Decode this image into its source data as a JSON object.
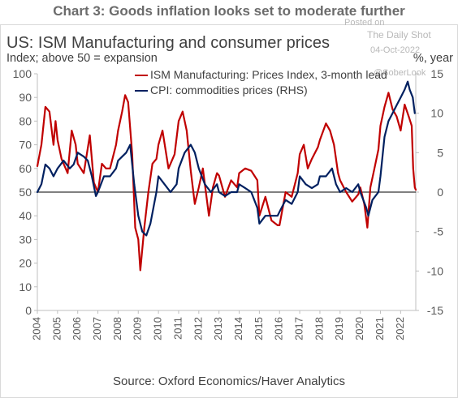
{
  "header": {
    "banner": "Chart 3: Goods inflation looks set to moderate further"
  },
  "watermark": {
    "posted_on": "Posted on",
    "site": "The Daily Shot",
    "date": "04-Oct-2022",
    "handle": "@SoberLook"
  },
  "chart_data": {
    "type": "line",
    "title": "US: ISM Manufacturing and consumer prices",
    "left_axis_label": "Index; above 50 = expansion",
    "right_axis_label": "%, year",
    "source": "Source: Oxford Economics/Haver Analytics",
    "left_ticks": [
      0,
      10,
      20,
      30,
      40,
      50,
      60,
      70,
      80,
      90,
      100
    ],
    "left_tick_labels": [
      "0",
      "10",
      "20",
      "30",
      "40",
      "50",
      "60",
      "70",
      "80",
      "90",
      "100"
    ],
    "right_ticks": [
      -15,
      -10,
      -5,
      0,
      5,
      10,
      15
    ],
    "right_tick_labels": [
      "-15",
      "-10",
      "-5",
      "0",
      "5",
      "10",
      "15"
    ],
    "x_tick_labels": [
      "2004",
      "2005",
      "2006",
      "2007",
      "2008",
      "2009",
      "2010",
      "2011",
      "2012",
      "2013",
      "2014",
      "2015",
      "2016",
      "2017",
      "2018",
      "2019",
      "2020",
      "2021",
      "2022"
    ],
    "x_range": [
      2004.0,
      2022.75
    ],
    "ylim_left": [
      0,
      100
    ],
    "ylim_right": [
      -15,
      15
    ],
    "reference_line": 50,
    "colors": {
      "ism": "#c00000",
      "cpi": "#002060"
    },
    "series": [
      {
        "name": "ISM Manufacturing: Prices Index, 3-month lead",
        "axis": "left",
        "points": [
          [
            2004.0,
            61
          ],
          [
            2004.2,
            70
          ],
          [
            2004.4,
            86
          ],
          [
            2004.6,
            84
          ],
          [
            2004.8,
            70
          ],
          [
            2004.9,
            80
          ],
          [
            2005.0,
            72
          ],
          [
            2005.2,
            64
          ],
          [
            2005.5,
            58
          ],
          [
            2005.7,
            76
          ],
          [
            2005.9,
            70
          ],
          [
            2006.0,
            62
          ],
          [
            2006.3,
            58
          ],
          [
            2006.6,
            74
          ],
          [
            2006.8,
            54
          ],
          [
            2007.0,
            50
          ],
          [
            2007.2,
            62
          ],
          [
            2007.4,
            60
          ],
          [
            2007.6,
            60
          ],
          [
            2007.9,
            70
          ],
          [
            2008.0,
            76
          ],
          [
            2008.2,
            84
          ],
          [
            2008.35,
            91
          ],
          [
            2008.5,
            88
          ],
          [
            2008.7,
            66
          ],
          [
            2008.85,
            35
          ],
          [
            2009.0,
            30
          ],
          [
            2009.1,
            17
          ],
          [
            2009.3,
            35
          ],
          [
            2009.5,
            50
          ],
          [
            2009.7,
            62
          ],
          [
            2009.9,
            64
          ],
          [
            2010.0,
            70
          ],
          [
            2010.2,
            76
          ],
          [
            2010.5,
            60
          ],
          [
            2010.8,
            66
          ],
          [
            2011.0,
            80
          ],
          [
            2011.2,
            84
          ],
          [
            2011.4,
            76
          ],
          [
            2011.6,
            59
          ],
          [
            2011.8,
            45
          ],
          [
            2012.0,
            52
          ],
          [
            2012.2,
            60
          ],
          [
            2012.5,
            40
          ],
          [
            2012.7,
            52
          ],
          [
            2012.9,
            58
          ],
          [
            2013.0,
            57
          ],
          [
            2013.3,
            48
          ],
          [
            2013.6,
            55
          ],
          [
            2013.9,
            52
          ],
          [
            2014.0,
            58
          ],
          [
            2014.3,
            60
          ],
          [
            2014.6,
            59
          ],
          [
            2014.9,
            55
          ],
          [
            2015.0,
            40
          ],
          [
            2015.3,
            48
          ],
          [
            2015.6,
            38
          ],
          [
            2015.9,
            36
          ],
          [
            2016.0,
            36
          ],
          [
            2016.3,
            50
          ],
          [
            2016.6,
            48
          ],
          [
            2016.9,
            58
          ],
          [
            2017.0,
            66
          ],
          [
            2017.2,
            70
          ],
          [
            2017.4,
            60
          ],
          [
            2017.6,
            64
          ],
          [
            2017.9,
            69
          ],
          [
            2018.0,
            72
          ],
          [
            2018.3,
            79
          ],
          [
            2018.5,
            76
          ],
          [
            2018.7,
            70
          ],
          [
            2018.9,
            58
          ],
          [
            2019.0,
            55
          ],
          [
            2019.3,
            50
          ],
          [
            2019.6,
            46
          ],
          [
            2019.9,
            49
          ],
          [
            2020.0,
            52
          ],
          [
            2020.2,
            45
          ],
          [
            2020.35,
            35
          ],
          [
            2020.5,
            52
          ],
          [
            2020.7,
            60
          ],
          [
            2020.9,
            68
          ],
          [
            2021.0,
            78
          ],
          [
            2021.2,
            86
          ],
          [
            2021.4,
            92
          ],
          [
            2021.6,
            85
          ],
          [
            2021.8,
            82
          ],
          [
            2022.0,
            76
          ],
          [
            2022.2,
            87
          ],
          [
            2022.4,
            82
          ],
          [
            2022.55,
            78
          ],
          [
            2022.62,
            60
          ],
          [
            2022.7,
            52
          ],
          [
            2022.75,
            51
          ]
        ]
      },
      {
        "name": "CPI: commodities prices (RHS)",
        "axis": "right",
        "points": [
          [
            2004.0,
            0
          ],
          [
            2004.2,
            1
          ],
          [
            2004.4,
            3.5
          ],
          [
            2004.6,
            3
          ],
          [
            2004.8,
            2
          ],
          [
            2005.0,
            3
          ],
          [
            2005.3,
            4
          ],
          [
            2005.6,
            3
          ],
          [
            2005.8,
            3.5
          ],
          [
            2006.0,
            5
          ],
          [
            2006.3,
            4.5
          ],
          [
            2006.5,
            4
          ],
          [
            2006.7,
            2
          ],
          [
            2006.9,
            -0.5
          ],
          [
            2007.0,
            0
          ],
          [
            2007.3,
            2
          ],
          [
            2007.6,
            2
          ],
          [
            2007.9,
            3
          ],
          [
            2008.0,
            4
          ],
          [
            2008.2,
            4.5
          ],
          [
            2008.4,
            5
          ],
          [
            2008.6,
            6
          ],
          [
            2008.8,
            1
          ],
          [
            2009.0,
            -3
          ],
          [
            2009.2,
            -5
          ],
          [
            2009.4,
            -5.5
          ],
          [
            2009.6,
            -4
          ],
          [
            2009.9,
            0
          ],
          [
            2010.0,
            2
          ],
          [
            2010.3,
            1
          ],
          [
            2010.6,
            0
          ],
          [
            2010.9,
            1
          ],
          [
            2011.0,
            3
          ],
          [
            2011.3,
            5
          ],
          [
            2011.6,
            6
          ],
          [
            2011.8,
            5
          ],
          [
            2012.0,
            3
          ],
          [
            2012.3,
            1
          ],
          [
            2012.6,
            0
          ],
          [
            2012.9,
            1
          ],
          [
            2013.0,
            0
          ],
          [
            2013.3,
            -0.5
          ],
          [
            2013.6,
            0
          ],
          [
            2013.9,
            0
          ],
          [
            2014.0,
            1
          ],
          [
            2014.3,
            0.5
          ],
          [
            2014.6,
            0
          ],
          [
            2014.9,
            -2
          ],
          [
            2015.0,
            -4
          ],
          [
            2015.3,
            -3
          ],
          [
            2015.6,
            -3
          ],
          [
            2015.9,
            -3
          ],
          [
            2016.0,
            -2.5
          ],
          [
            2016.3,
            -1
          ],
          [
            2016.6,
            -1.5
          ],
          [
            2016.9,
            0
          ],
          [
            2017.0,
            2
          ],
          [
            2017.3,
            1
          ],
          [
            2017.6,
            0.5
          ],
          [
            2017.9,
            1
          ],
          [
            2018.0,
            2
          ],
          [
            2018.3,
            2
          ],
          [
            2018.6,
            3
          ],
          [
            2018.8,
            1
          ],
          [
            2019.0,
            0
          ],
          [
            2019.3,
            0.5
          ],
          [
            2019.6,
            0
          ],
          [
            2019.9,
            1
          ],
          [
            2020.0,
            0
          ],
          [
            2020.3,
            -2
          ],
          [
            2020.4,
            -3
          ],
          [
            2020.6,
            -1
          ],
          [
            2020.9,
            0
          ],
          [
            2021.0,
            2
          ],
          [
            2021.2,
            7
          ],
          [
            2021.4,
            9
          ],
          [
            2021.6,
            10
          ],
          [
            2021.8,
            11
          ],
          [
            2022.0,
            12
          ],
          [
            2022.2,
            13
          ],
          [
            2022.35,
            14
          ],
          [
            2022.45,
            13
          ],
          [
            2022.6,
            12
          ],
          [
            2022.7,
            10
          ]
        ]
      }
    ]
  }
}
